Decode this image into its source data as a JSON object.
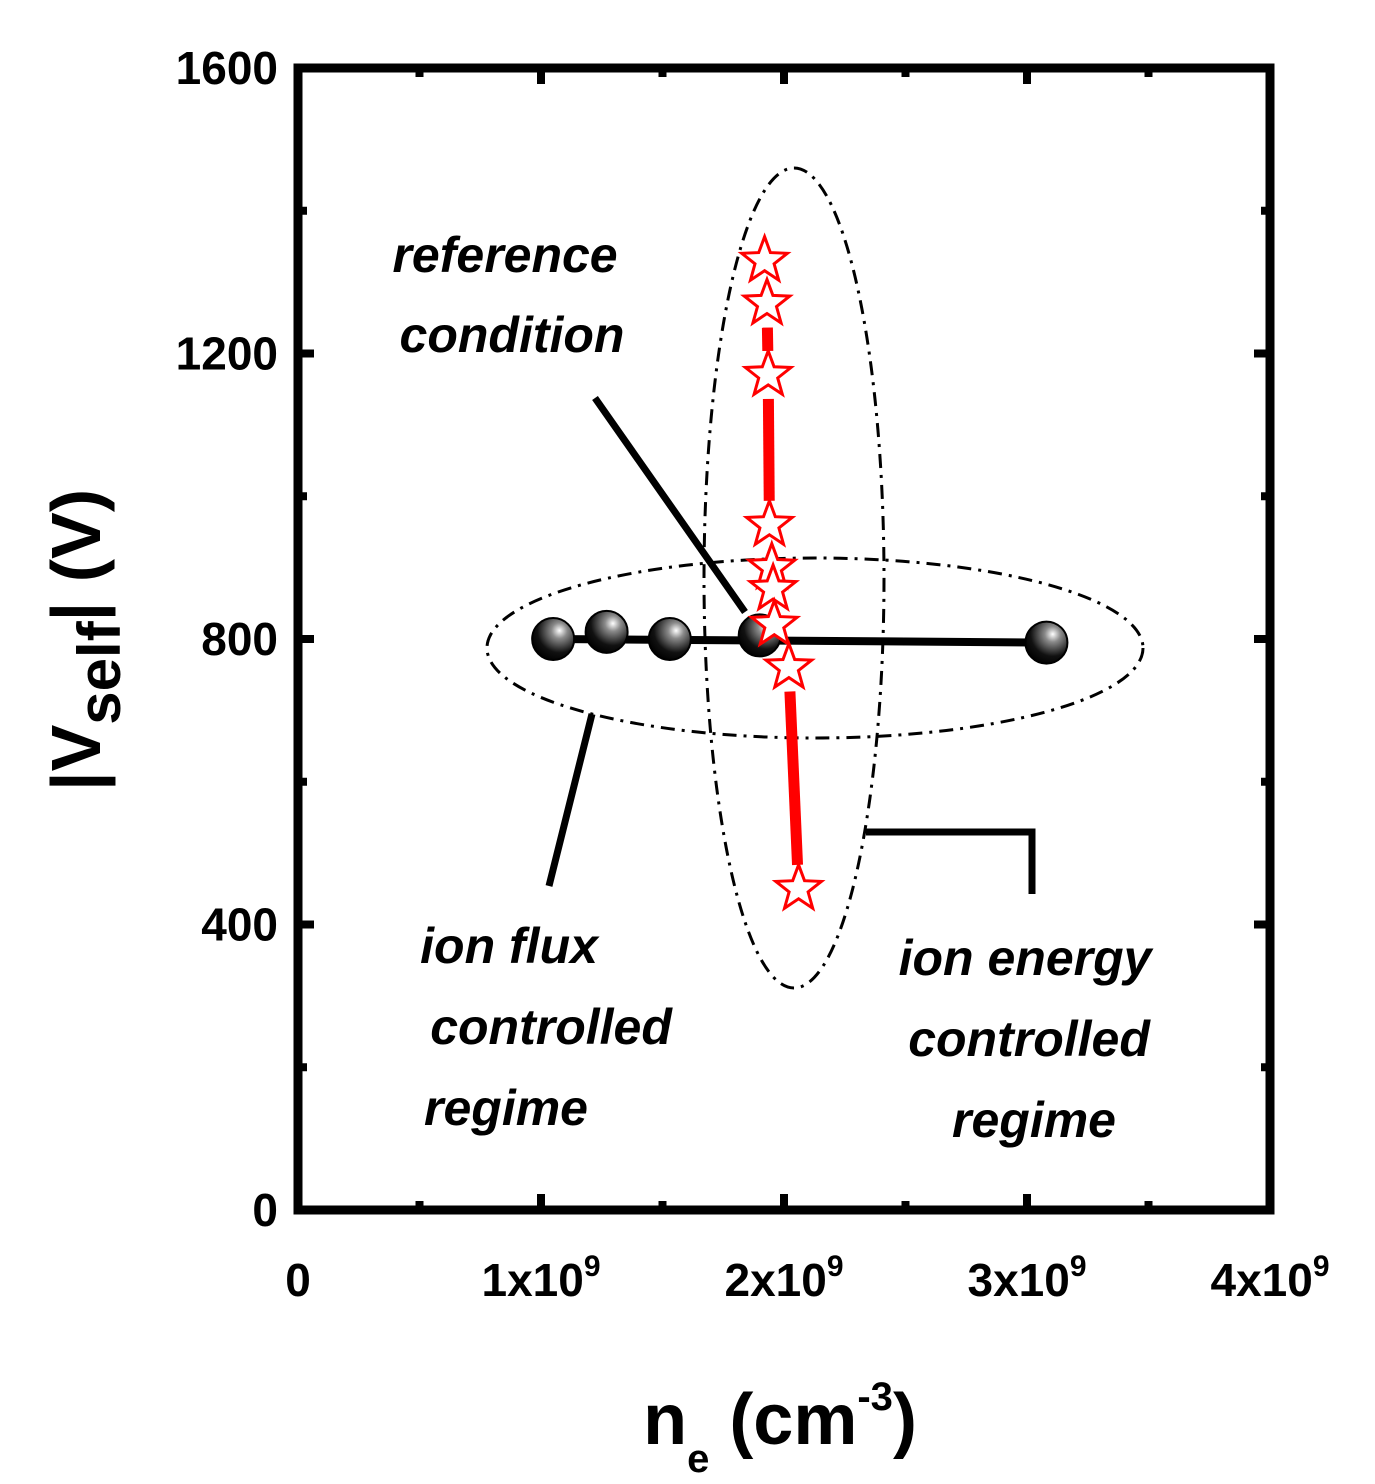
{
  "chart_data": {
    "type": "scatter",
    "title": "",
    "xlabel": {
      "main": "n",
      "sub": "e",
      "unit_open": " (cm",
      "unit_sup": "-3",
      "unit_close": ")"
    },
    "ylabel": {
      "pre": "|V",
      "sub": "self",
      "post": "| (V)"
    },
    "xlim": [
      0,
      4000000000
    ],
    "ylim": [
      0,
      1600
    ],
    "x_ticks": [
      {
        "value": 0,
        "base": "0",
        "exp": ""
      },
      {
        "value": 1000000000,
        "base": "1x10",
        "exp": "9"
      },
      {
        "value": 2000000000,
        "base": "2x10",
        "exp": "9"
      },
      {
        "value": 3000000000,
        "base": "3x10",
        "exp": "9"
      },
      {
        "value": 4000000000,
        "base": "4x10",
        "exp": "9"
      }
    ],
    "y_ticks": [
      {
        "value": 0,
        "label": "0"
      },
      {
        "value": 400,
        "label": "400"
      },
      {
        "value": 800,
        "label": "800"
      },
      {
        "value": 1200,
        "label": "1200"
      },
      {
        "value": 1600,
        "label": "1600"
      }
    ],
    "series": [
      {
        "name": "ion flux controlled",
        "marker": "sphere",
        "color": "#000000",
        "x": [
          1050000000,
          1270000000,
          1530000000,
          1900000000,
          3080000000
        ],
        "y": [
          800,
          810,
          800,
          805,
          795
        ]
      },
      {
        "name": "ion energy controlled",
        "marker": "star",
        "color": "#ff0000",
        "x": [
          1920000000,
          1930000000,
          1935000000,
          1940000000,
          1950000000,
          1955000000,
          1960000000,
          2020000000,
          2060000000
        ],
        "y": [
          1330,
          1270,
          1170,
          960,
          900,
          870,
          820,
          760,
          450
        ]
      }
    ],
    "annotations": [
      {
        "id": "reference",
        "lines": [
          "reference",
          "condition"
        ]
      },
      {
        "id": "flux",
        "lines": [
          "ion flux",
          "controlled",
          "regime"
        ]
      },
      {
        "id": "energy",
        "lines": [
          "ion energy",
          "controlled",
          "regime"
        ]
      }
    ]
  }
}
